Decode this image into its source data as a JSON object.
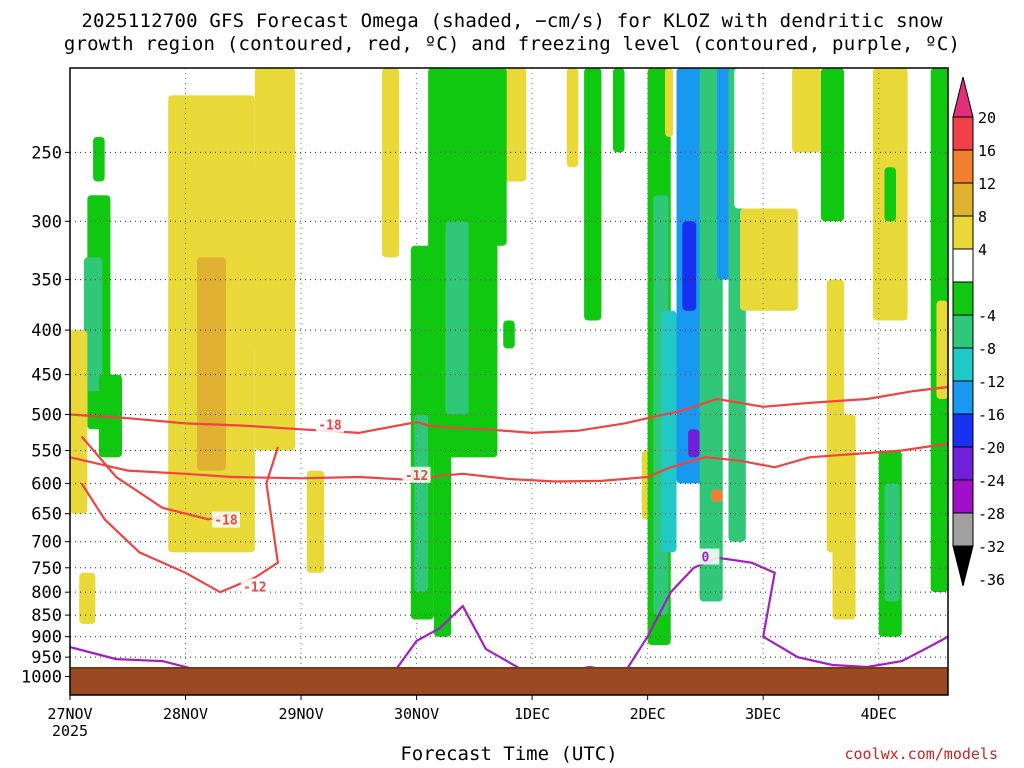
{
  "chart_data": {
    "type": "heatmap",
    "title_line1": "2025112700 GFS Forecast Omega (shaded, −cm/s) for KLOZ with dendritic snow",
    "title_line2": "growth region (contoured, red, ºC) and freezing level (contoured, purple, ºC)",
    "xlabel": "Forecast Time (UTC)",
    "ylabel": "",
    "credit": "coolwx.com/models",
    "y_axis": {
      "scale": "log-pressure",
      "range_hpa": [
        1050,
        200
      ],
      "ticks": [
        "250",
        "300",
        "350",
        "400",
        "450",
        "500",
        "550",
        "600",
        "650",
        "700",
        "750",
        "800",
        "850",
        "900",
        "950",
        "1000"
      ]
    },
    "x_axis": {
      "range_days": [
        0,
        7.6
      ],
      "ticks": [
        {
          "day": 0,
          "label": "27NOV",
          "sublabel": "2025"
        },
        {
          "day": 1,
          "label": "28NOV",
          "sublabel": ""
        },
        {
          "day": 2,
          "label": "29NOV",
          "sublabel": ""
        },
        {
          "day": 3,
          "label": "30NOV",
          "sublabel": ""
        },
        {
          "day": 4,
          "label": "1DEC",
          "sublabel": ""
        },
        {
          "day": 5,
          "label": "2DEC",
          "sublabel": ""
        },
        {
          "day": 6,
          "label": "3DEC",
          "sublabel": ""
        },
        {
          "day": 7,
          "label": "4DEC",
          "sublabel": ""
        }
      ]
    },
    "colorbar": [
      {
        "label": "20",
        "color": "#e0307a"
      },
      {
        "label": "16",
        "color": "#f0404a"
      },
      {
        "label": "12",
        "color": "#f08030"
      },
      {
        "label": "8",
        "color": "#e0b030"
      },
      {
        "label": "4",
        "color": "#e8d838"
      },
      {
        "label": "",
        "color": "#ffffff"
      },
      {
        "label": "-4",
        "color": "#10c810"
      },
      {
        "label": "-8",
        "color": "#30c878"
      },
      {
        "label": "-12",
        "color": "#20c8c8"
      },
      {
        "label": "-16",
        "color": "#1898f0"
      },
      {
        "label": "-20",
        "color": "#1830f0"
      },
      {
        "label": "-24",
        "color": "#7020d8"
      },
      {
        "label": "-28",
        "color": "#a010c8"
      },
      {
        "label": "-32",
        "color": "#a0a0a0"
      },
      {
        "label": "-36",
        "color": "#000000"
      }
    ],
    "omega_regions": [
      {
        "day": [
          0.15,
          0.35
        ],
        "p": [
          280,
          520
        ],
        "value": -6
      },
      {
        "day": [
          0.12,
          0.28
        ],
        "p": [
          330,
          470
        ],
        "value": -12
      },
      {
        "day": [
          0.25,
          0.45
        ],
        "p": [
          450,
          560
        ],
        "value": -6
      },
      {
        "day": [
          0.0,
          0.15
        ],
        "p": [
          400,
          650
        ],
        "value": 5
      },
      {
        "day": [
          0.08,
          0.22
        ],
        "p": [
          760,
          870
        ],
        "value": 5
      },
      {
        "day": [
          0.2,
          0.3
        ],
        "p": [
          240,
          270
        ],
        "value": -6
      },
      {
        "day": [
          0.85,
          1.6
        ],
        "p": [
          215,
          720
        ],
        "value": 5
      },
      {
        "day": [
          1.1,
          1.35
        ],
        "p": [
          330,
          580
        ],
        "value": 8
      },
      {
        "day": [
          0.9,
          1.05
        ],
        "p": [
          450,
          600
        ],
        "value": 5
      },
      {
        "day": [
          1.55,
          1.7
        ],
        "p": [
          260,
          420
        ],
        "value": 6
      },
      {
        "day": [
          1.6,
          1.95
        ],
        "p": [
          200,
          550
        ],
        "value": 5
      },
      {
        "day": [
          2.05,
          2.2
        ],
        "p": [
          580,
          760
        ],
        "value": 5
      },
      {
        "day": [
          2.7,
          2.85
        ],
        "p": [
          200,
          330
        ],
        "value": 5
      },
      {
        "day": [
          2.95,
          3.15
        ],
        "p": [
          320,
          860
        ],
        "value": -6
      },
      {
        "day": [
          2.98,
          3.1
        ],
        "p": [
          500,
          800
        ],
        "value": -10
      },
      {
        "day": [
          3.1,
          3.7
        ],
        "p": [
          200,
          560
        ],
        "value": -6
      },
      {
        "day": [
          3.25,
          3.45
        ],
        "p": [
          300,
          500
        ],
        "value": -12
      },
      {
        "day": [
          3.15,
          3.3
        ],
        "p": [
          550,
          900
        ],
        "value": -8
      },
      {
        "day": [
          3.7,
          3.95
        ],
        "p": [
          200,
          270
        ],
        "value": 5
      },
      {
        "day": [
          3.75,
          3.85
        ],
        "p": [
          390,
          420
        ],
        "value": -6
      },
      {
        "day": [
          3.65,
          3.78
        ],
        "p": [
          200,
          320
        ],
        "value": -6
      },
      {
        "day": [
          4.45,
          4.6
        ],
        "p": [
          200,
          390
        ],
        "value": -6
      },
      {
        "day": [
          4.3,
          4.4
        ],
        "p": [
          200,
          260
        ],
        "value": 5
      },
      {
        "day": [
          4.7,
          4.8
        ],
        "p": [
          200,
          250
        ],
        "value": -6
      },
      {
        "day": [
          4.95,
          5.12
        ],
        "p": [
          550,
          660
        ],
        "value": 5
      },
      {
        "day": [
          5.0,
          5.2
        ],
        "p": [
          200,
          920
        ],
        "value": -6
      },
      {
        "day": [
          5.05,
          5.18
        ],
        "p": [
          280,
          850
        ],
        "value": -12
      },
      {
        "day": [
          5.12,
          5.25
        ],
        "p": [
          380,
          720
        ],
        "value": -16
      },
      {
        "day": [
          5.15,
          5.22
        ],
        "p": [
          200,
          240
        ],
        "value": 6
      },
      {
        "day": [
          5.25,
          5.5
        ],
        "p": [
          200,
          600
        ],
        "value": -18
      },
      {
        "day": [
          5.3,
          5.42
        ],
        "p": [
          300,
          380
        ],
        "value": -22
      },
      {
        "day": [
          5.35,
          5.45
        ],
        "p": [
          520,
          560
        ],
        "value": -26
      },
      {
        "day": [
          5.45,
          5.65
        ],
        "p": [
          200,
          820
        ],
        "value": -10
      },
      {
        "day": [
          5.55,
          5.65
        ],
        "p": [
          610,
          630
        ],
        "value": 12
      },
      {
        "day": [
          5.6,
          5.75
        ],
        "p": [
          200,
          350
        ],
        "value": -20
      },
      {
        "day": [
          5.7,
          5.85
        ],
        "p": [
          200,
          700
        ],
        "value": -10
      },
      {
        "day": [
          5.75,
          6.1
        ],
        "p": [
          200,
          290
        ],
        "value": -4
      },
      {
        "day": [
          5.8,
          6.3
        ],
        "p": [
          290,
          380
        ],
        "value": 5
      },
      {
        "day": [
          6.25,
          6.5
        ],
        "p": [
          200,
          250
        ],
        "value": 5
      },
      {
        "day": [
          6.5,
          6.7
        ],
        "p": [
          200,
          300
        ],
        "value": -6
      },
      {
        "day": [
          6.55,
          6.7
        ],
        "p": [
          350,
          720
        ],
        "value": 5
      },
      {
        "day": [
          6.6,
          6.8
        ],
        "p": [
          500,
          860
        ],
        "value": 5
      },
      {
        "day": [
          6.95,
          7.25
        ],
        "p": [
          200,
          390
        ],
        "value": 5
      },
      {
        "day": [
          7.05,
          7.15
        ],
        "p": [
          260,
          300
        ],
        "value": -6
      },
      {
        "day": [
          7.0,
          7.2
        ],
        "p": [
          550,
          900
        ],
        "value": -6
      },
      {
        "day": [
          7.05,
          7.18
        ],
        "p": [
          600,
          820
        ],
        "value": -10
      },
      {
        "day": [
          7.45,
          7.6
        ],
        "p": [
          200,
          800
        ],
        "value": -6
      },
      {
        "day": [
          7.5,
          7.6
        ],
        "p": [
          370,
          480
        ],
        "value": 5
      }
    ],
    "contours": [
      {
        "name": "-18",
        "color": "#ee4444",
        "label_day": 2.25,
        "label_p": 515,
        "points": [
          [
            0,
            500
          ],
          [
            0.5,
            505
          ],
          [
            1.0,
            512
          ],
          [
            1.5,
            515
          ],
          [
            2.0,
            520
          ],
          [
            2.5,
            525
          ],
          [
            3.0,
            510
          ],
          [
            3.1,
            515
          ],
          [
            3.3,
            518
          ],
          [
            3.6,
            520
          ],
          [
            4.0,
            525
          ],
          [
            4.4,
            522
          ],
          [
            4.8,
            512
          ],
          [
            5.0,
            505
          ],
          [
            5.3,
            495
          ],
          [
            5.6,
            480
          ],
          [
            6.0,
            490
          ],
          [
            6.4,
            485
          ],
          [
            6.9,
            480
          ],
          [
            7.3,
            470
          ],
          [
            7.6,
            465
          ]
        ]
      },
      {
        "name": "-12",
        "color": "#ee4444",
        "label_day": 3.0,
        "label_p": 588,
        "points": [
          [
            0,
            560
          ],
          [
            0.5,
            580
          ],
          [
            1.0,
            585
          ],
          [
            1.4,
            590
          ],
          [
            2.0,
            592
          ],
          [
            2.5,
            590
          ],
          [
            3.0,
            595
          ],
          [
            3.2,
            588
          ],
          [
            3.4,
            585
          ],
          [
            3.8,
            593
          ],
          [
            4.2,
            597
          ],
          [
            4.6,
            596
          ],
          [
            5.0,
            590
          ],
          [
            5.2,
            575
          ],
          [
            5.5,
            560
          ],
          [
            5.8,
            565
          ],
          [
            6.1,
            575
          ],
          [
            6.4,
            560
          ],
          [
            6.8,
            555
          ],
          [
            7.2,
            550
          ],
          [
            7.6,
            540
          ]
        ]
      },
      {
        "name": "-18 (lower lobe)",
        "color": "#ee4444",
        "label_day": 1.35,
        "label_p": 662,
        "points": [
          [
            0.1,
            530
          ],
          [
            0.4,
            590
          ],
          [
            0.8,
            640
          ],
          [
            1.2,
            660
          ],
          [
            1.4,
            650
          ]
        ]
      },
      {
        "name": "-12 (lower lobe)",
        "color": "#ee4444",
        "label_day": 1.6,
        "label_p": 790,
        "points": [
          [
            0.1,
            600
          ],
          [
            0.3,
            660
          ],
          [
            0.6,
            720
          ],
          [
            1.0,
            760
          ],
          [
            1.3,
            800
          ],
          [
            1.6,
            770
          ],
          [
            1.8,
            740
          ],
          [
            1.7,
            600
          ],
          [
            1.8,
            545
          ]
        ]
      },
      {
        "name": "0 (freezing level)",
        "color": "#a020c0",
        "label_day": 5.5,
        "label_p": 730,
        "points": [
          [
            0,
            925
          ],
          [
            0.4,
            955
          ],
          [
            0.8,
            960
          ],
          [
            1.2,
            990
          ],
          [
            1.6,
            1000
          ],
          [
            2.0,
            990
          ],
          [
            2.4,
            1010
          ],
          [
            2.8,
            990
          ],
          [
            3.0,
            910
          ],
          [
            3.2,
            880
          ],
          [
            3.4,
            830
          ],
          [
            3.6,
            930
          ],
          [
            3.9,
            980
          ],
          [
            4.2,
            990
          ],
          [
            4.5,
            975
          ],
          [
            4.8,
            990
          ],
          [
            5.0,
            900
          ],
          [
            5.2,
            800
          ],
          [
            5.4,
            750
          ],
          [
            5.6,
            730
          ],
          [
            5.9,
            740
          ],
          [
            6.1,
            760
          ],
          [
            6.0,
            900
          ],
          [
            6.3,
            950
          ],
          [
            6.6,
            970
          ],
          [
            6.9,
            975
          ],
          [
            7.2,
            960
          ],
          [
            7.4,
            930
          ],
          [
            7.6,
            900
          ]
        ]
      }
    ]
  }
}
